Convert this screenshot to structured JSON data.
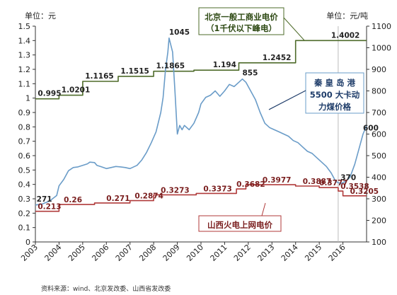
{
  "chart_data": {
    "type": "line",
    "left_unit": "单位：元",
    "right_unit": "单位：元/吨",
    "source": "资料来源：wind、北京发改委、山西省发改委",
    "left_axis": {
      "min": 0,
      "max": 1.5,
      "step": 0.1,
      "ticks": [
        "0",
        "0.1",
        "0.2",
        "0.3",
        "0.4",
        "0.5",
        "0.6",
        "0.7",
        "0.8",
        "0.9",
        "1",
        "1.1",
        "1.2",
        "1.3",
        "1.4",
        "1.5"
      ]
    },
    "right_axis": {
      "min": 100,
      "max": 1100,
      "step": 100,
      "ticks": [
        "100",
        "200",
        "300",
        "400",
        "500",
        "600",
        "700",
        "800",
        "900",
        "1000",
        "1100"
      ]
    },
    "x_axis": {
      "min": 2003,
      "max": 2017,
      "ticks": [
        "2003",
        "2004",
        "2005",
        "2006",
        "2007",
        "2008",
        "2009",
        "2010",
        "2011",
        "2012",
        "2013",
        "2014",
        "2015",
        "2016"
      ]
    },
    "vertical_marker_x": 2015.8,
    "series": [
      {
        "name": "北京一般工商业电价（1千伏以下峰电）",
        "axis": "left",
        "color": "#4e6b2a",
        "points": [
          [
            2003.0,
            0.995
          ],
          [
            2004.0,
            0.995
          ],
          [
            2004.0,
            1.0201
          ],
          [
            2005.0,
            1.0201
          ],
          [
            2005.0,
            1.1165
          ],
          [
            2006.5,
            1.1165
          ],
          [
            2006.5,
            1.1515
          ],
          [
            2008.0,
            1.1515
          ],
          [
            2008.0,
            1.1865
          ],
          [
            2009.7,
            1.1865
          ],
          [
            2009.7,
            1.194
          ],
          [
            2011.6,
            1.194
          ],
          [
            2011.6,
            1.2452
          ],
          [
            2014.0,
            1.2452
          ],
          [
            2014.0,
            1.4002
          ],
          [
            2017.0,
            1.4002
          ]
        ],
        "labels": [
          {
            "x": 2003.1,
            "y": 0.995,
            "text": "0.995"
          },
          {
            "x": 2004.1,
            "y": 1.0201,
            "text": "1.0201"
          },
          {
            "x": 2005.1,
            "y": 1.1165,
            "text": "1.1165"
          },
          {
            "x": 2006.6,
            "y": 1.1515,
            "text": "1.1515"
          },
          {
            "x": 2008.1,
            "y": 1.1865,
            "text": "1.1865"
          },
          {
            "x": 2010.5,
            "y": 1.194,
            "text": "1.194"
          },
          {
            "x": 2012.6,
            "y": 1.2452,
            "text": "1.2452"
          },
          {
            "x": 2015.5,
            "y": 1.4002,
            "text": "1.4002"
          }
        ],
        "legend_text": [
          "北京一般工商业电价",
          "（1千伏以下峰电）"
        ]
      },
      {
        "name": "秦皇岛港5500大卡动力煤价格",
        "axis": "right",
        "color": "#6a9cc8",
        "points": [
          [
            2003.0,
            271
          ],
          [
            2003.3,
            276
          ],
          [
            2003.6,
            290
          ],
          [
            2003.9,
            315
          ],
          [
            2004.0,
            360
          ],
          [
            2004.2,
            390
          ],
          [
            2004.4,
            430
          ],
          [
            2004.6,
            445
          ],
          [
            2004.8,
            448
          ],
          [
            2005.0,
            455
          ],
          [
            2005.2,
            462
          ],
          [
            2005.3,
            470
          ],
          [
            2005.5,
            468
          ],
          [
            2005.6,
            455
          ],
          [
            2005.8,
            448
          ],
          [
            2006.0,
            440
          ],
          [
            2006.2,
            445
          ],
          [
            2006.4,
            450
          ],
          [
            2006.6,
            448
          ],
          [
            2006.8,
            445
          ],
          [
            2007.0,
            440
          ],
          [
            2007.3,
            455
          ],
          [
            2007.5,
            480
          ],
          [
            2007.7,
            515
          ],
          [
            2007.9,
            560
          ],
          [
            2008.1,
            610
          ],
          [
            2008.3,
            700
          ],
          [
            2008.4,
            770
          ],
          [
            2008.5,
            900
          ],
          [
            2008.6,
            980
          ],
          [
            2008.65,
            1045
          ],
          [
            2008.8,
            980
          ],
          [
            2008.9,
            800
          ],
          [
            2009.0,
            600
          ],
          [
            2009.1,
            640
          ],
          [
            2009.2,
            620
          ],
          [
            2009.3,
            640
          ],
          [
            2009.5,
            620
          ],
          [
            2009.7,
            650
          ],
          [
            2009.9,
            700
          ],
          [
            2010.0,
            740
          ],
          [
            2010.2,
            770
          ],
          [
            2010.4,
            780
          ],
          [
            2010.6,
            800
          ],
          [
            2010.8,
            775
          ],
          [
            2011.0,
            800
          ],
          [
            2011.2,
            830
          ],
          [
            2011.4,
            820
          ],
          [
            2011.6,
            840
          ],
          [
            2011.75,
            855
          ],
          [
            2011.9,
            840
          ],
          [
            2012.1,
            800
          ],
          [
            2012.3,
            760
          ],
          [
            2012.5,
            700
          ],
          [
            2012.7,
            650
          ],
          [
            2012.9,
            630
          ],
          [
            2013.1,
            620
          ],
          [
            2013.3,
            610
          ],
          [
            2013.5,
            600
          ],
          [
            2013.7,
            590
          ],
          [
            2013.9,
            570
          ],
          [
            2014.1,
            560
          ],
          [
            2014.3,
            540
          ],
          [
            2014.5,
            520
          ],
          [
            2014.7,
            510
          ],
          [
            2014.9,
            490
          ],
          [
            2015.1,
            470
          ],
          [
            2015.3,
            450
          ],
          [
            2015.5,
            420
          ],
          [
            2015.7,
            380
          ],
          [
            2015.9,
            370
          ],
          [
            2016.1,
            380
          ],
          [
            2016.3,
            400
          ],
          [
            2016.5,
            460
          ],
          [
            2016.7,
            540
          ],
          [
            2016.85,
            600
          ],
          [
            2017.0,
            640
          ]
        ],
        "labels": [
          {
            "x": 2003.05,
            "y": 271,
            "text": "271"
          },
          {
            "x": 2008.65,
            "y": 1045,
            "text": "1045"
          },
          {
            "x": 2011.75,
            "y": 855,
            "text": "855"
          },
          {
            "x": 2015.9,
            "y": 370,
            "text": "370"
          },
          {
            "x": 2016.85,
            "y": 600,
            "text": "600"
          }
        ],
        "legend_text": [
          "秦 皇 岛 港",
          "5500 大卡动",
          "力煤价格"
        ]
      },
      {
        "name": "山西火电上网电价",
        "axis": "left",
        "color": "#b03a3a",
        "points": [
          [
            2003.0,
            0.213
          ],
          [
            2004.0,
            0.213
          ],
          [
            2004.0,
            0.26
          ],
          [
            2005.5,
            0.26
          ],
          [
            2005.5,
            0.271
          ],
          [
            2007.0,
            0.271
          ],
          [
            2007.0,
            0.2874
          ],
          [
            2008.0,
            0.2874
          ],
          [
            2008.0,
            0.3273
          ],
          [
            2009.8,
            0.3273
          ],
          [
            2009.8,
            0.3373
          ],
          [
            2011.5,
            0.3373
          ],
          [
            2011.5,
            0.3682
          ],
          [
            2011.9,
            0.3682
          ],
          [
            2011.9,
            0.3977
          ],
          [
            2014.0,
            0.3977
          ],
          [
            2014.0,
            0.3887
          ],
          [
            2015.0,
            0.3887
          ],
          [
            2015.0,
            0.3777
          ],
          [
            2015.8,
            0.3777
          ],
          [
            2015.8,
            0.3538
          ],
          [
            2016.0,
            0.3538
          ],
          [
            2016.0,
            0.3205
          ],
          [
            2017.0,
            0.3205
          ]
        ],
        "labels": [
          {
            "x": 2003.1,
            "y": 0.213,
            "text": "0.213"
          },
          {
            "x": 2004.2,
            "y": 0.26,
            "text": "0.26"
          },
          {
            "x": 2006.0,
            "y": 0.271,
            "text": "0.271"
          },
          {
            "x": 2007.2,
            "y": 0.2874,
            "text": "0.2874"
          },
          {
            "x": 2008.3,
            "y": 0.3273,
            "text": "0.3273"
          },
          {
            "x": 2010.1,
            "y": 0.3373,
            "text": "0.3373"
          },
          {
            "x": 2011.5,
            "y": 0.3682,
            "text": "0.3682"
          },
          {
            "x": 2012.6,
            "y": 0.3977,
            "text": "0.3977"
          },
          {
            "x": 2014.3,
            "y": 0.3887,
            "text": "0.3887"
          },
          {
            "x": 2015.0,
            "y": 0.3777,
            "text": "0.3777"
          },
          {
            "x": 2015.9,
            "y": 0.3538,
            "text": "0.3538"
          },
          {
            "x": 2016.3,
            "y": 0.3205,
            "text": "0.3205"
          }
        ],
        "legend_text": [
          "山西火电上网电价"
        ]
      }
    ]
  }
}
